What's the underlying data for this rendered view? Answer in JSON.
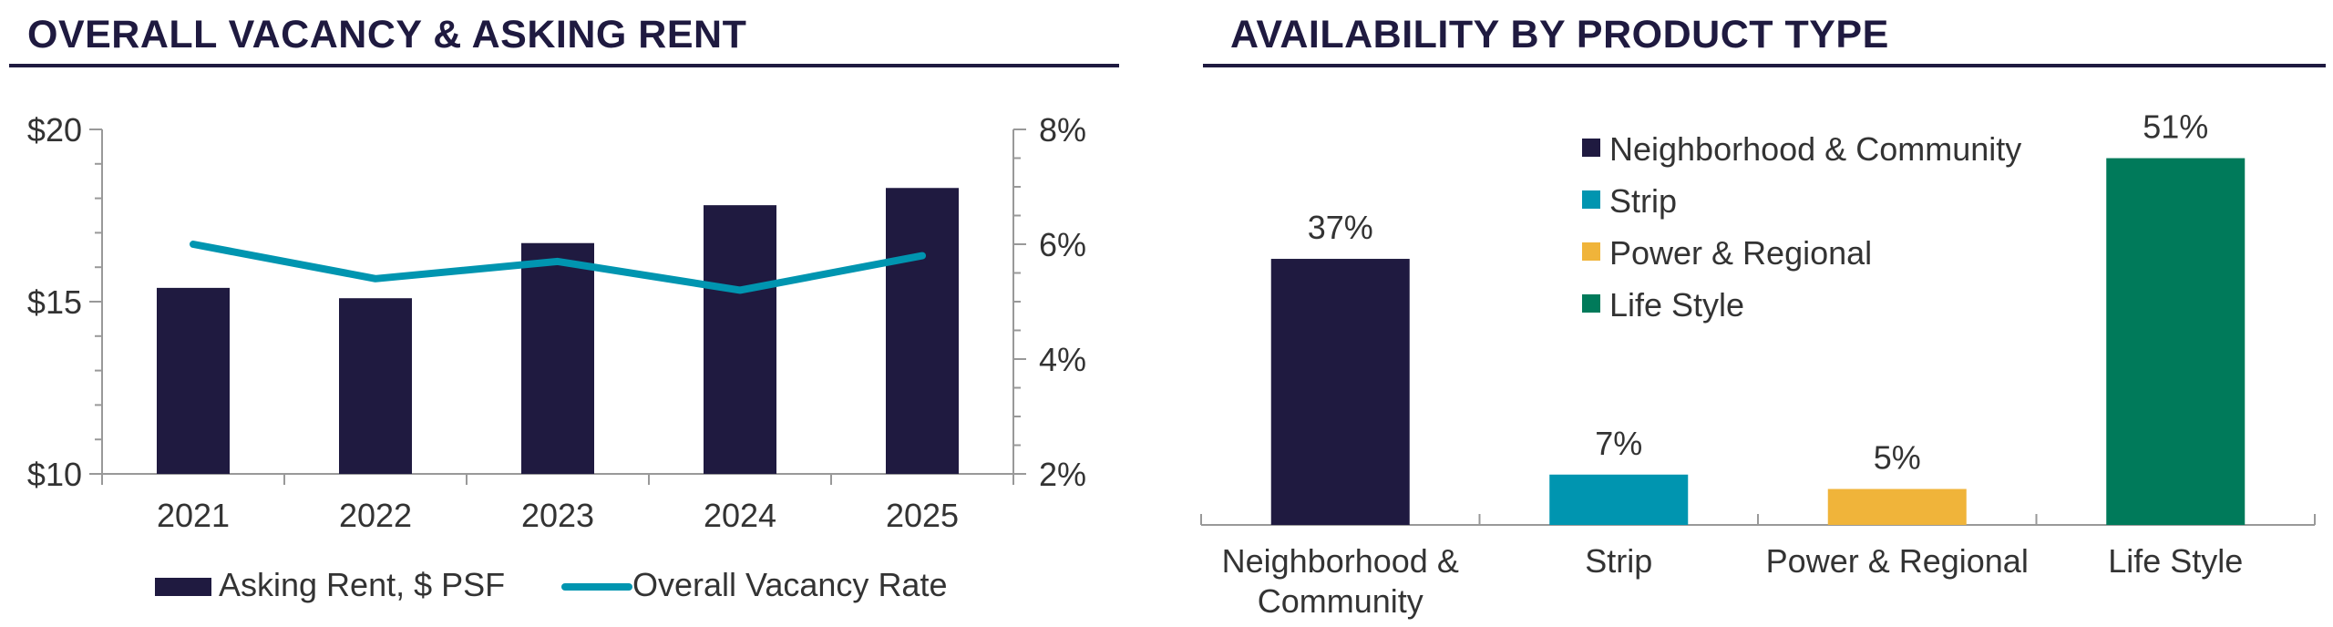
{
  "colors": {
    "navy": "#1f1a40",
    "teal": "#0095b0",
    "gold": "#f0b43a",
    "green": "#007a5a",
    "axis": "#999999"
  },
  "left_panel": {
    "title": "OVERALL VACANCY & ASKING RENT"
  },
  "right_panel": {
    "title": "AVAILABILITY BY PRODUCT TYPE"
  },
  "chart_data": [
    {
      "type": "bar",
      "title": "OVERALL VACANCY & ASKING RENT",
      "categories": [
        "2021",
        "2022",
        "2023",
        "2024",
        "2025"
      ],
      "series": [
        {
          "name": "Asking Rent, $ PSF",
          "kind": "bar",
          "axis": "left",
          "color": "#1f1a40",
          "values": [
            15.4,
            15.1,
            16.7,
            17.8,
            18.3
          ]
        },
        {
          "name": "Overall Vacancy Rate",
          "kind": "line",
          "axis": "right",
          "color": "#0095b0",
          "values": [
            6.0,
            5.4,
            5.7,
            5.2,
            5.8
          ]
        }
      ],
      "y_left": {
        "min": 10,
        "max": 20,
        "ticks": [
          "$10",
          "$15",
          "$20"
        ],
        "tick_values": [
          10,
          15,
          20
        ]
      },
      "y_right": {
        "min": 2,
        "max": 8,
        "ticks": [
          "2%",
          "4%",
          "6%",
          "8%"
        ],
        "tick_values": [
          2,
          4,
          6,
          8
        ]
      },
      "grid": false,
      "legend": "bottom"
    },
    {
      "type": "bar",
      "title": "AVAILABILITY BY PRODUCT TYPE",
      "categories": [
        "Neighborhood & Community",
        "Strip",
        "Power & Regional",
        "Life Style"
      ],
      "category_lines": [
        [
          "Neighborhood &",
          "Community"
        ],
        [
          "Strip"
        ],
        [
          "Power & Regional"
        ],
        [
          "Life Style"
        ]
      ],
      "values": [
        37,
        7,
        5,
        51
      ],
      "data_labels": [
        "37%",
        "7%",
        "5%",
        "51%"
      ],
      "colors": [
        "#1f1a40",
        "#0095b0",
        "#f0b43a",
        "#007a5a"
      ],
      "legend": [
        "Neighborhood & Community",
        "Strip",
        "Power & Regional",
        "Life Style"
      ],
      "ylim": [
        0,
        55
      ],
      "grid": false,
      "legend_position": "top-center"
    }
  ]
}
